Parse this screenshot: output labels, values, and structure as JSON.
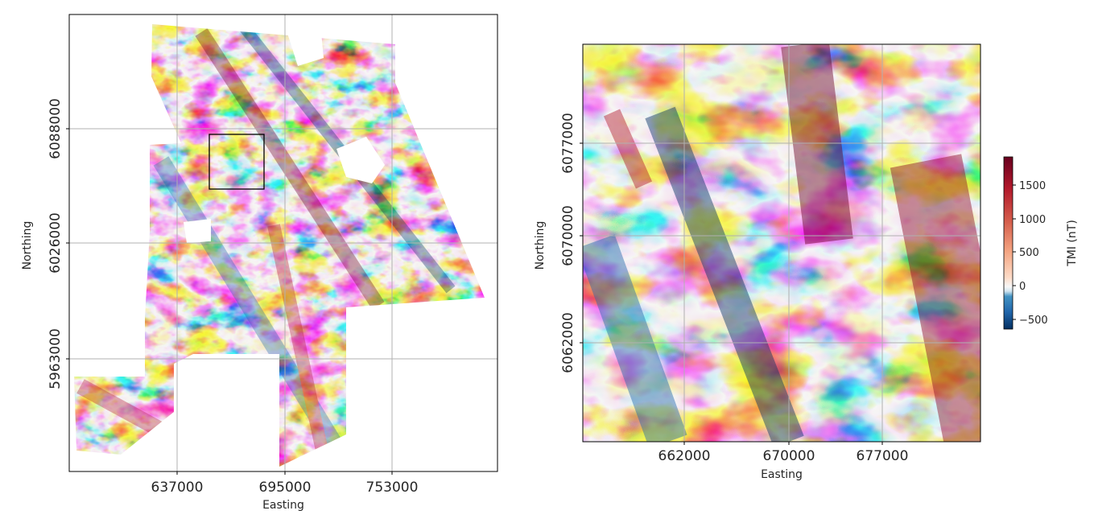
{
  "figure": {
    "colormap": "RdBu_r",
    "colors": {
      "low": "#053061",
      "mid": "#f7f7f7",
      "high": "#67001f",
      "grid": "#b0b0b0",
      "frame": "#000000",
      "inset_box": "#000000"
    }
  },
  "chart_data": [
    {
      "type": "heatmap",
      "title": "",
      "xlabel": "Easting",
      "ylabel": "Northing",
      "x_ticks": [
        "637000",
        "695000",
        "753000"
      ],
      "y_ticks": [
        "6088000",
        "6026000",
        "5963000"
      ],
      "grid": true,
      "inset_box": {
        "x": [
          660000,
          690000
        ],
        "y": [
          6057000,
          6087000
        ]
      },
      "note_values": "TMI anomaly field shown as colour; values not individually labeled"
    },
    {
      "type": "heatmap",
      "title": "",
      "xlabel": "Easting",
      "ylabel": "Northing",
      "x_ticks": [
        "662000",
        "670000",
        "677000"
      ],
      "y_ticks": [
        "6077000",
        "6070000",
        "6062000"
      ],
      "grid": true
    }
  ],
  "colorbar": {
    "label": "TMI (nT)",
    "ticks": [
      "1500",
      "1000",
      "500",
      "0",
      "−500"
    ],
    "range": [
      -620,
      1900
    ]
  }
}
